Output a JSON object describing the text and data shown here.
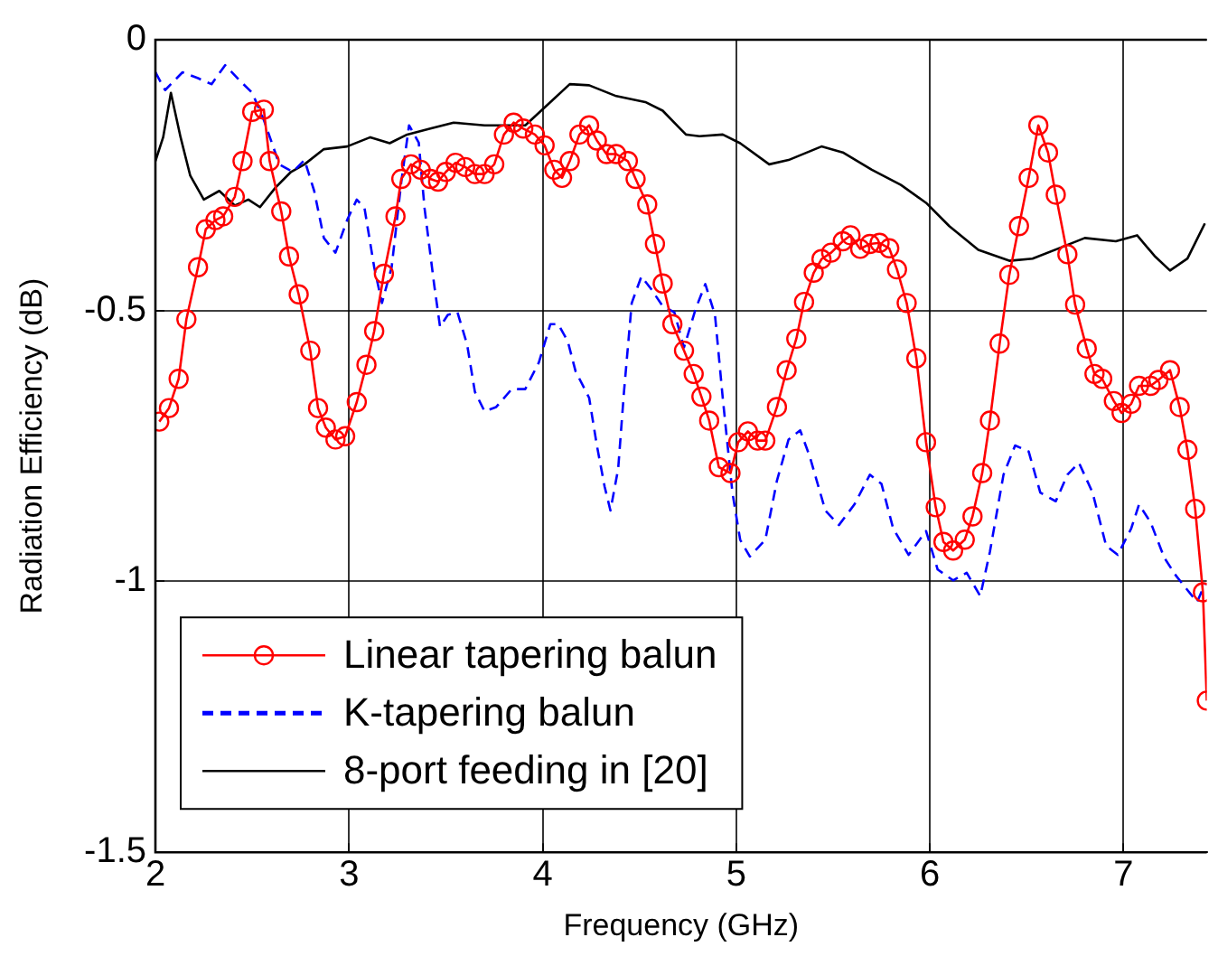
{
  "chart_data": {
    "type": "line",
    "xlabel": "Frequency (GHz)",
    "ylabel": "Radiation Efficiency (dB)",
    "xlim": [
      2,
      7.43
    ],
    "xticks": [
      2,
      3,
      4,
      5,
      6,
      7
    ],
    "ylim": [
      -1.5,
      0
    ],
    "yticks": [
      -1.5,
      -1,
      -0.5,
      0
    ],
    "grid": true,
    "legend": "bottom left",
    "series": [
      {
        "name": "Linear tapering balun",
        "color": "#ff0000",
        "marker": "circle",
        "line_style": "solid",
        "x": [
          2.02,
          2.07,
          2.12,
          2.16,
          2.22,
          2.26,
          2.31,
          2.35,
          2.41,
          2.45,
          2.5,
          2.56,
          2.59,
          2.65,
          2.69,
          2.74,
          2.8,
          2.84,
          2.88,
          2.93,
          2.98,
          3.04,
          3.09,
          3.13,
          3.18,
          3.24,
          3.27,
          3.32,
          3.37,
          3.42,
          3.46,
          3.5,
          3.55,
          3.6,
          3.65,
          3.7,
          3.75,
          3.8,
          3.85,
          3.9,
          3.96,
          4.01,
          4.06,
          4.1,
          4.14,
          4.19,
          4.24,
          4.28,
          4.33,
          4.38,
          4.44,
          4.48,
          4.54,
          4.58,
          4.62,
          4.67,
          4.73,
          4.78,
          4.82,
          4.86,
          4.91,
          4.97,
          5.01,
          5.06,
          5.11,
          5.15,
          5.21,
          5.26,
          5.31,
          5.35,
          5.4,
          5.44,
          5.49,
          5.55,
          5.59,
          5.64,
          5.69,
          5.74,
          5.79,
          5.83,
          5.88,
          5.93,
          5.98,
          6.03,
          6.07,
          6.12,
          6.18,
          6.22,
          6.27,
          6.31,
          6.36,
          6.41,
          6.46,
          6.51,
          6.56,
          6.61,
          6.65,
          6.71,
          6.75,
          6.81,
          6.85,
          6.89,
          6.95,
          6.99,
          7.04,
          7.08,
          7.14,
          7.18,
          7.24,
          7.29,
          7.33,
          7.37,
          7.41,
          7.43
        ],
        "values": [
          -0.705,
          -0.68,
          -0.626,
          -0.516,
          -0.42,
          -0.35,
          -0.333,
          -0.326,
          -0.29,
          -0.224,
          -0.133,
          -0.129,
          -0.224,
          -0.317,
          -0.4,
          -0.47,
          -0.574,
          -0.68,
          -0.716,
          -0.738,
          -0.732,
          -0.669,
          -0.6,
          -0.538,
          -0.432,
          -0.326,
          -0.257,
          -0.23,
          -0.24,
          -0.257,
          -0.262,
          -0.244,
          -0.227,
          -0.235,
          -0.248,
          -0.248,
          -0.23,
          -0.175,
          -0.153,
          -0.164,
          -0.175,
          -0.195,
          -0.24,
          -0.255,
          -0.224,
          -0.175,
          -0.158,
          -0.186,
          -0.211,
          -0.211,
          -0.224,
          -0.257,
          -0.304,
          -0.377,
          -0.45,
          -0.525,
          -0.574,
          -0.617,
          -0.659,
          -0.703,
          -0.789,
          -0.8,
          -0.743,
          -0.723,
          -0.74,
          -0.74,
          -0.678,
          -0.61,
          -0.552,
          -0.484,
          -0.43,
          -0.405,
          -0.393,
          -0.372,
          -0.361,
          -0.386,
          -0.377,
          -0.375,
          -0.385,
          -0.424,
          -0.486,
          -0.588,
          -0.743,
          -0.863,
          -0.927,
          -0.943,
          -0.923,
          -0.88,
          -0.8,
          -0.703,
          -0.561,
          -0.434,
          -0.344,
          -0.255,
          -0.158,
          -0.208,
          -0.286,
          -0.396,
          -0.489,
          -0.57,
          -0.617,
          -0.626,
          -0.667,
          -0.689,
          -0.672,
          -0.639,
          -0.639,
          -0.628,
          -0.61,
          -0.678,
          -0.757,
          -0.866,
          -1.02,
          -1.22
        ]
      },
      {
        "name": "K-tapering balun",
        "color": "#0000ff",
        "marker": "none",
        "line_style": "dashed",
        "x": [
          2,
          2.05,
          2.14,
          2.22,
          2.29,
          2.36,
          2.44,
          2.5,
          2.56,
          2.64,
          2.71,
          2.77,
          2.82,
          2.87,
          2.93,
          2.99,
          3.04,
          3.08,
          3.13,
          3.17,
          3.22,
          3.27,
          3.31,
          3.36,
          3.39,
          3.44,
          3.47,
          3.51,
          3.56,
          3.61,
          3.65,
          3.7,
          3.76,
          3.84,
          3.91,
          3.98,
          4.04,
          4.08,
          4.13,
          4.17,
          4.24,
          4.28,
          4.32,
          4.35,
          4.39,
          4.42,
          4.46,
          4.51,
          4.56,
          4.62,
          4.68,
          4.73,
          4.79,
          4.84,
          4.89,
          4.93,
          4.98,
          5.02,
          5.07,
          5.15,
          5.21,
          5.27,
          5.33,
          5.38,
          5.46,
          5.53,
          5.61,
          5.69,
          5.75,
          5.81,
          5.89,
          5.98,
          6.04,
          6.12,
          6.19,
          6.26,
          6.31,
          6.38,
          6.44,
          6.51,
          6.57,
          6.65,
          6.71,
          6.77,
          6.84,
          6.91,
          6.97,
          7.04,
          7.08,
          7.14,
          7.21,
          7.27,
          7.33,
          7.38,
          7.42
        ],
        "values": [
          -0.06,
          -0.093,
          -0.06,
          -0.071,
          -0.082,
          -0.047,
          -0.077,
          -0.098,
          -0.148,
          -0.23,
          -0.244,
          -0.222,
          -0.279,
          -0.366,
          -0.393,
          -0.333,
          -0.295,
          -0.311,
          -0.42,
          -0.486,
          -0.42,
          -0.262,
          -0.158,
          -0.19,
          -0.311,
          -0.453,
          -0.53,
          -0.508,
          -0.503,
          -0.563,
          -0.65,
          -0.686,
          -0.678,
          -0.645,
          -0.645,
          -0.596,
          -0.525,
          -0.525,
          -0.557,
          -0.612,
          -0.661,
          -0.749,
          -0.825,
          -0.869,
          -0.792,
          -0.65,
          -0.486,
          -0.437,
          -0.46,
          -0.492,
          -0.503,
          -0.568,
          -0.497,
          -0.451,
          -0.508,
          -0.661,
          -0.836,
          -0.923,
          -0.954,
          -0.923,
          -0.814,
          -0.738,
          -0.721,
          -0.77,
          -0.869,
          -0.896,
          -0.858,
          -0.803,
          -0.82,
          -0.902,
          -0.951,
          -0.907,
          -0.978,
          -0.998,
          -0.984,
          -1.027,
          -0.945,
          -0.803,
          -0.749,
          -0.76,
          -0.836,
          -0.852,
          -0.803,
          -0.781,
          -0.836,
          -0.934,
          -0.951,
          -0.902,
          -0.858,
          -0.891,
          -0.956,
          -0.989,
          -1.016,
          -1.038,
          -1.005
        ]
      },
      {
        "name": "8-port feeding in [20]",
        "color": "#000000",
        "marker": "none",
        "line_style": "solid",
        "x": [
          2,
          2.04,
          2.08,
          2.13,
          2.18,
          2.25,
          2.33,
          2.41,
          2.48,
          2.54,
          2.62,
          2.7,
          2.77,
          2.87,
          2.99,
          3.11,
          3.21,
          3.3,
          3.42,
          3.54,
          3.7,
          3.91,
          4.04,
          4.14,
          4.24,
          4.38,
          4.53,
          4.62,
          4.71,
          4.74,
          4.81,
          4.93,
          5.02,
          5.17,
          5.27,
          5.44,
          5.55,
          5.7,
          5.85,
          5.98,
          6.1,
          6.25,
          6.41,
          6.53,
          6.68,
          6.8,
          6.96,
          7.07,
          7.16,
          7.24,
          7.33,
          7.42
        ],
        "values": [
          -0.224,
          -0.18,
          -0.098,
          -0.18,
          -0.251,
          -0.295,
          -0.279,
          -0.306,
          -0.295,
          -0.309,
          -0.273,
          -0.244,
          -0.23,
          -0.202,
          -0.197,
          -0.18,
          -0.191,
          -0.175,
          -0.164,
          -0.153,
          -0.158,
          -0.158,
          -0.115,
          -0.082,
          -0.084,
          -0.104,
          -0.115,
          -0.131,
          -0.164,
          -0.175,
          -0.178,
          -0.175,
          -0.191,
          -0.23,
          -0.222,
          -0.197,
          -0.208,
          -0.24,
          -0.268,
          -0.301,
          -0.344,
          -0.388,
          -0.408,
          -0.404,
          -0.383,
          -0.366,
          -0.372,
          -0.361,
          -0.399,
          -0.426,
          -0.404,
          -0.339
        ]
      }
    ]
  }
}
